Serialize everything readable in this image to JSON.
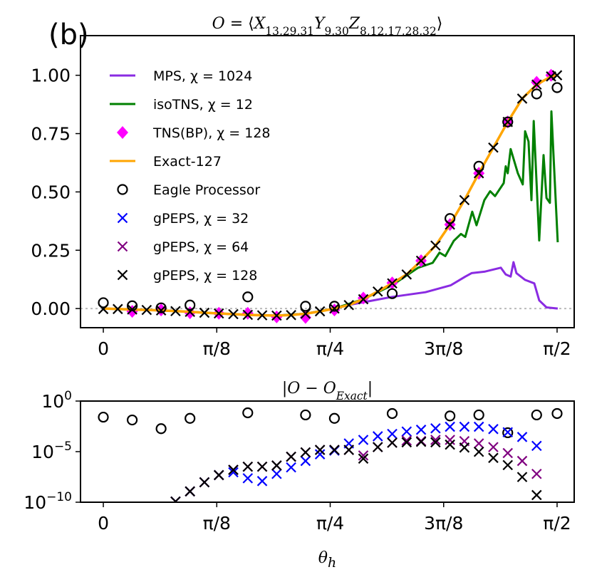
{
  "panel_label": "(b)",
  "chart_data": [
    {
      "type": "line",
      "title_segments": [
        {
          "t": "O",
          "sub": false,
          "italic": true
        },
        {
          "t": " = ⟨",
          "sub": false,
          "italic": false
        },
        {
          "t": "X",
          "sub": false,
          "italic": true
        },
        {
          "t": "13,29,31",
          "sub": true,
          "italic": false
        },
        {
          "t": "Y",
          "sub": false,
          "italic": true
        },
        {
          "t": "9,30",
          "sub": true,
          "italic": false
        },
        {
          "t": "Z",
          "sub": false,
          "italic": true
        },
        {
          "t": "8,12,17,28,32",
          "sub": true,
          "italic": false
        },
        {
          "t": "⟩",
          "sub": false,
          "italic": false
        }
      ],
      "xlim": [
        -0.079,
        1.63
      ],
      "ylim": [
        -0.082,
        1.17
      ],
      "x_ticks": [
        {
          "v": 0,
          "label": "0"
        },
        {
          "v": 0.3927,
          "label": "π/8"
        },
        {
          "v": 0.7854,
          "label": "π/4"
        },
        {
          "v": 1.1781,
          "label": "3π/8"
        },
        {
          "v": 1.5708,
          "label": "π/2"
        }
      ],
      "y_ticks": [
        {
          "v": 0,
          "label": "0.00"
        },
        {
          "v": 0.25,
          "label": "0.25"
        },
        {
          "v": 0.5,
          "label": "0.50"
        },
        {
          "v": 0.75,
          "label": "0.75"
        },
        {
          "v": 1.0,
          "label": "1.00"
        }
      ],
      "reference_line": {
        "y": 0,
        "style": "dotted",
        "color": "#bbbbbb"
      },
      "legend_placement": "upper-left",
      "series": [
        {
          "name": "MPS, χ = 1024",
          "kind": "line",
          "color": "#8a2be2",
          "x": [
            0,
            0.1,
            0.2,
            0.3,
            0.4,
            0.5,
            0.6,
            0.7,
            0.8,
            0.826,
            0.999,
            1.115,
            1.203,
            1.253,
            1.275,
            1.319,
            1.376,
            1.393,
            1.41,
            1.42,
            1.43,
            1.46,
            1.492,
            1.509,
            1.534,
            1.573
          ],
          "y": [
            0,
            -0.004,
            -0.008,
            -0.014,
            -0.021,
            -0.027,
            -0.03,
            -0.022,
            0.0,
            0.01,
            0.05,
            0.07,
            0.1,
            0.137,
            0.152,
            0.158,
            0.175,
            0.146,
            0.137,
            0.199,
            0.152,
            0.123,
            0.108,
            0.035,
            0.005,
            0.0
          ]
        },
        {
          "name": "isoTNS, χ = 12",
          "kind": "line",
          "color": "#008000",
          "x": [
            0,
            0.1,
            0.2,
            0.3,
            0.4,
            0.5,
            0.6,
            0.7,
            0.8,
            0.9,
            1.0,
            1.09,
            1.14,
            1.164,
            1.184,
            1.213,
            1.238,
            1.253,
            1.277,
            1.292,
            1.319,
            1.339,
            1.356,
            1.386,
            1.393,
            1.4,
            1.41,
            1.435,
            1.452,
            1.46,
            1.472,
            1.482,
            1.49,
            1.509,
            1.524,
            1.534,
            1.546,
            1.551,
            1.573
          ],
          "y": [
            0,
            -0.004,
            -0.008,
            -0.014,
            -0.021,
            -0.027,
            -0.03,
            -0.022,
            0.0,
            0.04,
            0.1,
            0.175,
            0.196,
            0.24,
            0.225,
            0.29,
            0.32,
            0.307,
            0.415,
            0.357,
            0.465,
            0.503,
            0.482,
            0.538,
            0.61,
            0.58,
            0.684,
            0.58,
            0.532,
            0.76,
            0.716,
            0.465,
            0.804,
            0.292,
            0.658,
            0.474,
            0.453,
            0.845,
            0.284
          ]
        },
        {
          "name": "TNS(BP), χ = 128",
          "kind": "diamond",
          "color": "#ff00ff",
          "x": [
            0.1,
            0.2,
            0.3,
            0.4,
            0.5,
            0.6,
            0.7,
            0.8,
            0.9,
            1.0,
            1.1,
            1.2,
            1.3,
            1.4,
            1.5,
            1.55
          ],
          "y": [
            -0.012,
            -0.006,
            -0.018,
            -0.02,
            -0.02,
            -0.036,
            -0.038,
            -0.006,
            0.045,
            0.11,
            0.205,
            0.36,
            0.58,
            0.8,
            0.97,
            1.0
          ]
        },
        {
          "name": "Exact-127",
          "kind": "line",
          "color": "#ffa500",
          "x": [
            0,
            0.05,
            0.1,
            0.15,
            0.2,
            0.25,
            0.3,
            0.35,
            0.4,
            0.45,
            0.5,
            0.55,
            0.6,
            0.65,
            0.7,
            0.75,
            0.8,
            0.85,
            0.9,
            0.95,
            1.0,
            1.05,
            1.1,
            1.15,
            1.2,
            1.25,
            1.3,
            1.35,
            1.4,
            1.45,
            1.5,
            1.55,
            1.5708
          ],
          "y": [
            0,
            -0.002,
            -0.004,
            -0.006,
            -0.008,
            -0.011,
            -0.014,
            -0.018,
            -0.021,
            -0.024,
            -0.027,
            -0.029,
            -0.03,
            -0.028,
            -0.022,
            -0.012,
            0.0,
            0.015,
            0.04,
            0.073,
            0.108,
            0.146,
            0.205,
            0.27,
            0.36,
            0.465,
            0.58,
            0.69,
            0.8,
            0.9,
            0.96,
            0.995,
            1.0
          ]
        },
        {
          "name": "Eagle Processor",
          "kind": "circle",
          "color": "#000000",
          "x": [
            0,
            0.1,
            0.2,
            0.3,
            0.5,
            0.7,
            0.8,
            1.0,
            1.2,
            1.3,
            1.4,
            1.5,
            1.5708
          ],
          "y": [
            0.025,
            0.012,
            0.003,
            0.015,
            0.05,
            0.01,
            0.01,
            0.064,
            0.386,
            0.61,
            0.8,
            0.92,
            0.947
          ]
        },
        {
          "name": "gPEPS, χ = 32",
          "kind": "x",
          "color": "#0000ff",
          "x": [],
          "y": []
        },
        {
          "name": "gPEPS, χ = 64",
          "kind": "x",
          "color": "#800080",
          "x": [],
          "y": []
        },
        {
          "name": "gPEPS, χ = 128",
          "kind": "x",
          "color": "#000000",
          "x": [
            0,
            0.05,
            0.1,
            0.15,
            0.2,
            0.25,
            0.3,
            0.35,
            0.4,
            0.45,
            0.5,
            0.55,
            0.6,
            0.65,
            0.7,
            0.75,
            0.8,
            0.85,
            0.9,
            0.95,
            1.0,
            1.05,
            1.1,
            1.15,
            1.2,
            1.25,
            1.3,
            1.35,
            1.4,
            1.45,
            1.5,
            1.55,
            1.5708
          ],
          "y": [
            -0.002,
            -0.002,
            -0.004,
            -0.006,
            -0.008,
            -0.011,
            -0.014,
            -0.018,
            -0.021,
            -0.024,
            -0.027,
            -0.029,
            -0.03,
            -0.028,
            -0.022,
            -0.012,
            0.0,
            0.015,
            0.04,
            0.073,
            0.108,
            0.146,
            0.205,
            0.27,
            0.36,
            0.465,
            0.58,
            0.69,
            0.8,
            0.9,
            0.96,
            0.995,
            1.0
          ]
        }
      ]
    },
    {
      "type": "scatter",
      "title_segments": [
        {
          "t": "|",
          "sub": false,
          "italic": false
        },
        {
          "t": "O",
          "sub": false,
          "italic": true
        },
        {
          "t": " − ",
          "sub": false,
          "italic": false
        },
        {
          "t": "O",
          "sub": false,
          "italic": true
        },
        {
          "t": "Exact",
          "sub": true,
          "italic": true
        },
        {
          "t": "|",
          "sub": false,
          "italic": false
        }
      ],
      "xlabel": "θ",
      "xlabel_sub": "h",
      "xlim": [
        -0.079,
        1.63
      ],
      "ylim": [
        1e-10,
        1
      ],
      "yscale": "log",
      "x_ticks": [
        {
          "v": 0,
          "label": "0"
        },
        {
          "v": 0.3927,
          "label": "π/8"
        },
        {
          "v": 0.7854,
          "label": "π/4"
        },
        {
          "v": 1.1781,
          "label": "3π/8"
        },
        {
          "v": 1.5708,
          "label": "π/2"
        }
      ],
      "y_ticks": [
        {
          "v": 1,
          "base": "10",
          "exp": "0"
        },
        {
          "v": 1e-05,
          "base": "10",
          "exp": "−5"
        },
        {
          "v": 1e-10,
          "base": "10",
          "exp": "−10"
        }
      ],
      "series": [
        {
          "kind": "circle",
          "color": "#000000",
          "x": [
            0,
            0.1,
            0.2,
            0.3,
            0.5,
            0.7,
            0.8,
            1.0,
            1.2,
            1.3,
            1.4,
            1.5,
            1.5708
          ],
          "log10_y": [
            -1.59,
            -1.87,
            -2.73,
            -1.71,
            -1.16,
            -1.37,
            -1.71,
            -1.23,
            -1.47,
            -1.37,
            -3.13,
            -1.37,
            -1.23
          ]
        },
        {
          "kind": "x",
          "color": "#0000ff",
          "x": [
            0.25,
            0.3,
            0.35,
            0.4,
            0.45,
            0.5,
            0.55,
            0.6,
            0.65,
            0.7,
            0.75,
            0.8,
            0.85,
            0.9,
            0.95,
            1.0,
            1.05,
            1.1,
            1.15,
            1.2,
            1.25,
            1.3,
            1.35,
            1.4,
            1.45,
            1.5
          ],
          "log10_y": [
            -9.93,
            -8.93,
            -8.03,
            -7.32,
            -7.04,
            -7.63,
            -7.91,
            -7.2,
            -6.56,
            -5.92,
            -5.26,
            -4.9,
            -4.19,
            -3.84,
            -3.48,
            -3.25,
            -3.01,
            -2.84,
            -2.7,
            -2.54,
            -2.54,
            -2.54,
            -2.77,
            -3.08,
            -3.55,
            -4.43
          ]
        },
        {
          "kind": "x",
          "color": "#800080",
          "x": [
            0.25,
            0.3,
            0.35,
            0.4,
            0.45,
            0.5,
            0.55,
            0.6,
            0.65,
            0.7,
            0.75,
            0.8,
            0.85,
            0.9,
            0.95,
            1.0,
            1.05,
            1.1,
            1.15,
            1.2,
            1.25,
            1.3,
            1.35,
            1.4,
            1.45,
            1.5
          ],
          "log10_y": [
            -9.93,
            -8.93,
            -8.03,
            -7.32,
            -6.8,
            -6.49,
            -6.49,
            -6.37,
            -5.5,
            -5.07,
            -4.83,
            -4.83,
            -4.83,
            -5.38,
            -4.55,
            -4.12,
            -3.9,
            -3.95,
            -3.84,
            -3.84,
            -3.96,
            -4.19,
            -4.55,
            -5.14,
            -5.92,
            -7.2
          ]
        },
        {
          "kind": "x",
          "color": "#000000",
          "x": [
            0.25,
            0.3,
            0.35,
            0.4,
            0.45,
            0.5,
            0.55,
            0.6,
            0.65,
            0.7,
            0.75,
            0.8,
            0.85,
            0.9,
            0.95,
            1.0,
            1.05,
            1.1,
            1.15,
            1.2,
            1.25,
            1.3,
            1.35,
            1.4,
            1.45,
            1.5
          ],
          "log10_y": [
            -9.93,
            -8.93,
            -8.03,
            -7.32,
            -6.8,
            -6.49,
            -6.49,
            -6.37,
            -5.5,
            -5.07,
            -4.83,
            -4.83,
            -4.83,
            -5.69,
            -4.55,
            -4.12,
            -4.08,
            -4.03,
            -4.08,
            -4.31,
            -4.6,
            -5.02,
            -5.62,
            -6.33,
            -7.51,
            -9.29
          ]
        }
      ]
    }
  ]
}
